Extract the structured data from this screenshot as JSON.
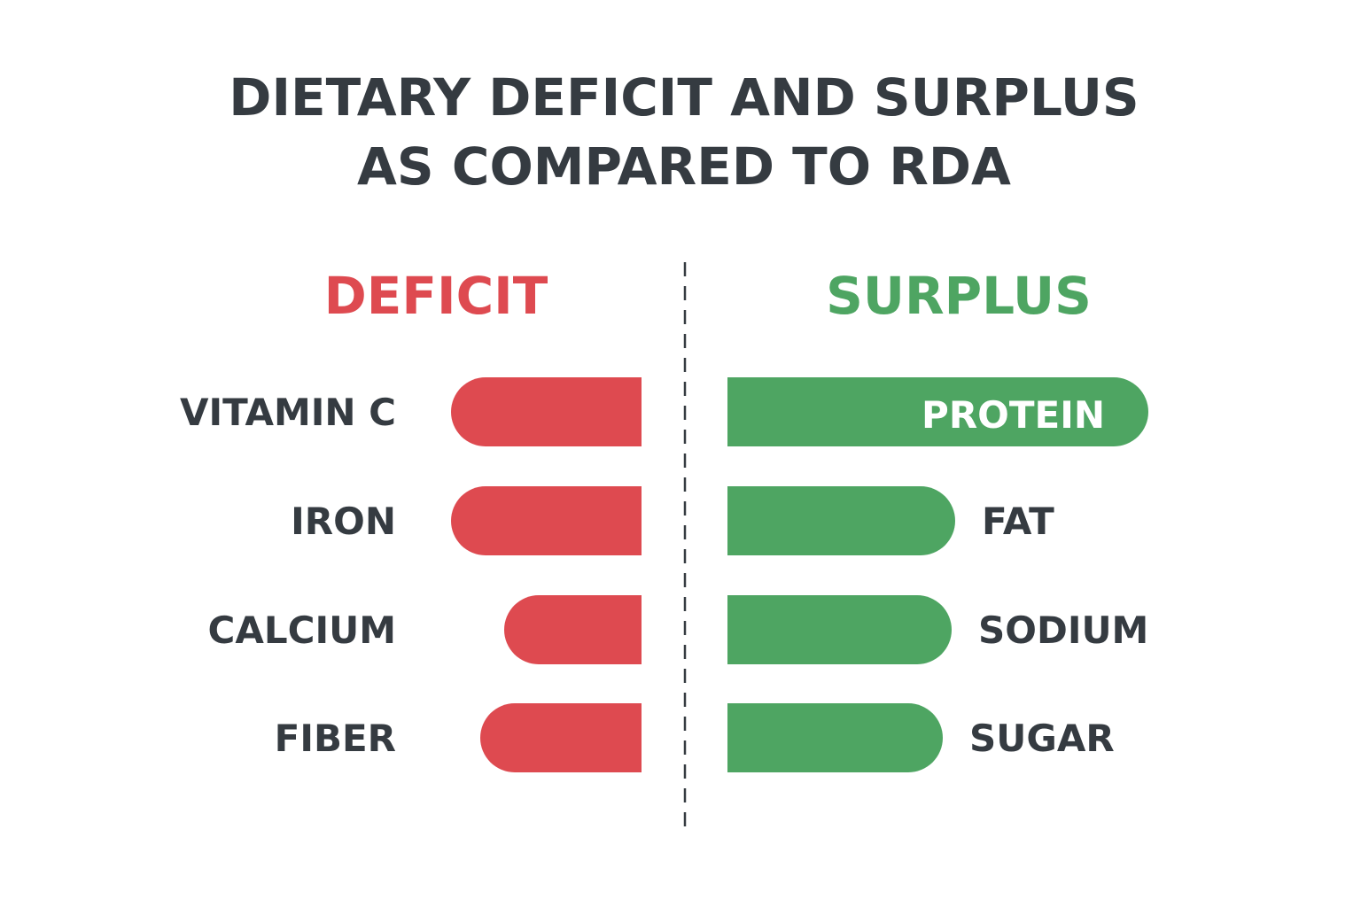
{
  "chart_data": {
    "type": "bar",
    "title_lines": [
      "DIETARY DEFICIT AND SURPLUS",
      "AS COMPARED TO RDA"
    ],
    "panels": [
      {
        "key": "deficit",
        "header": "DEFICIT",
        "categories": [
          "VITAMIN C",
          "IRON",
          "CALCIUM",
          "FIBER"
        ],
        "values": [
          215,
          215,
          155,
          182
        ]
      },
      {
        "key": "surplus",
        "header": "SURPLUS",
        "categories": [
          "PROTEIN",
          "FAT",
          "SODIUM",
          "SUGAR"
        ],
        "values": [
          475,
          257,
          253,
          243
        ]
      }
    ],
    "colors": {
      "deficit": "#de4a50",
      "surplus": "#4ea562",
      "text": "#353b41",
      "divider": "#353b41",
      "inside_label": "#ffffff"
    }
  }
}
